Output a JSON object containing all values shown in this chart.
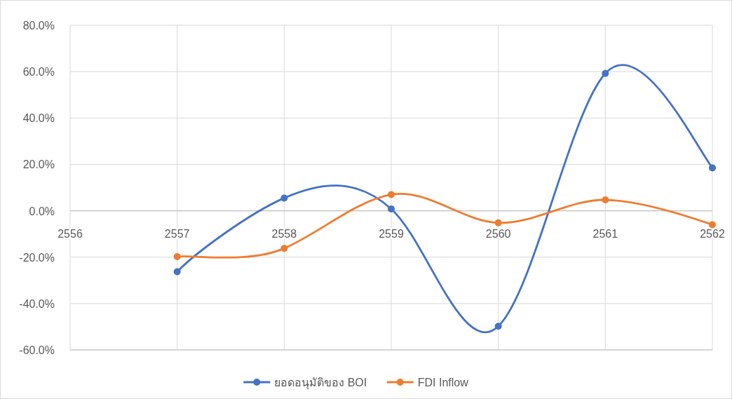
{
  "chart_data": {
    "type": "line",
    "x": [
      2557,
      2558,
      2559,
      2560,
      2561,
      2562
    ],
    "series": [
      {
        "name": "ยอดอนุมัติของ BOI",
        "color": "#4472c4",
        "values": [
          -26.3,
          5.5,
          0.8,
          -49.8,
          59.2,
          18.5
        ]
      },
      {
        "name": "FDI Inflow",
        "color": "#ed7d31",
        "values": [
          -19.8,
          -16.2,
          7.0,
          -5.2,
          4.7,
          -6.0
        ]
      }
    ],
    "xlim": [
      2556,
      2562
    ],
    "xticks": [
      2556,
      2557,
      2558,
      2559,
      2560,
      2561,
      2562
    ],
    "ylim": [
      -60,
      80
    ],
    "yticks": [
      {
        "value": -60,
        "label": "-60.0%"
      },
      {
        "value": -40,
        "label": "-40.0%"
      },
      {
        "value": -20,
        "label": "-20.0%"
      },
      {
        "value": 0,
        "label": "0.0%"
      },
      {
        "value": 20,
        "label": "20.0%"
      },
      {
        "value": 40,
        "label": "40.0%"
      },
      {
        "value": 60,
        "label": "60.0%"
      },
      {
        "value": 80,
        "label": "80.0%"
      }
    ],
    "grid": true,
    "legend": "bottom",
    "marker": "circle",
    "line_style": "solid"
  }
}
